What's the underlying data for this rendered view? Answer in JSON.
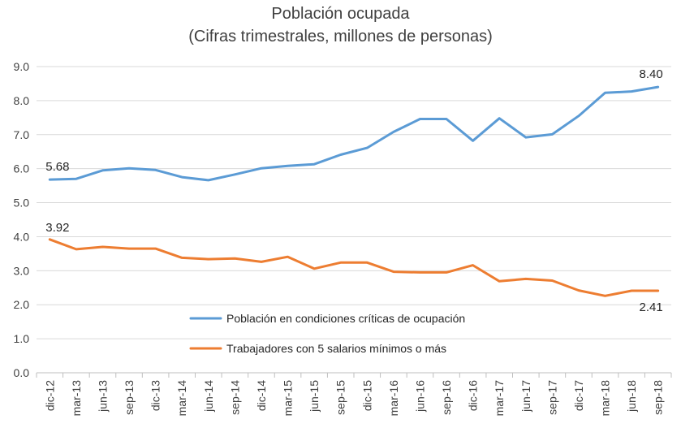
{
  "chart_data": {
    "type": "line",
    "title": "Población ocupada",
    "subtitle": "(Cifras trimestrales, millones de personas)",
    "xlabel": "",
    "ylabel": "",
    "ylim": [
      0,
      9
    ],
    "yticks": [
      "0.0",
      "1.0",
      "2.0",
      "3.0",
      "4.0",
      "5.0",
      "6.0",
      "7.0",
      "8.0",
      "9.0"
    ],
    "grid": true,
    "legend_position": "bottom-center",
    "categories": [
      "dic-12",
      "mar-13",
      "jun-13",
      "sep-13",
      "dic-13",
      "mar-14",
      "jun-14",
      "sep-14",
      "dic-14",
      "mar-15",
      "jun-15",
      "sep-15",
      "dic-15",
      "mar-16",
      "jun-16",
      "sep-16",
      "dic-16",
      "mar-17",
      "jun-17",
      "sep-17",
      "dic-17",
      "mar-18",
      "jun-18",
      "sep-18"
    ],
    "series": [
      {
        "name": "Población en condiciones críticas de ocupación",
        "color": "#5B9BD5",
        "values": [
          5.68,
          5.7,
          5.95,
          6.01,
          5.96,
          5.75,
          5.66,
          5.83,
          6.01,
          6.08,
          6.13,
          6.41,
          6.61,
          7.08,
          7.46,
          7.46,
          6.82,
          7.48,
          6.92,
          7.01,
          7.55,
          8.23,
          8.27,
          8.4
        ],
        "labels": [
          "5.68",
          "8.40"
        ]
      },
      {
        "name": "Trabajadores con 5 salarios mínimos o más",
        "color": "#ED7D31",
        "values": [
          3.92,
          3.63,
          3.7,
          3.65,
          3.65,
          3.38,
          3.34,
          3.36,
          3.26,
          3.41,
          3.06,
          3.24,
          3.24,
          2.97,
          2.95,
          2.95,
          3.16,
          2.69,
          2.76,
          2.71,
          2.42,
          2.26,
          2.41,
          2.41
        ],
        "labels": [
          "3.92",
          "2.41"
        ]
      }
    ]
  }
}
